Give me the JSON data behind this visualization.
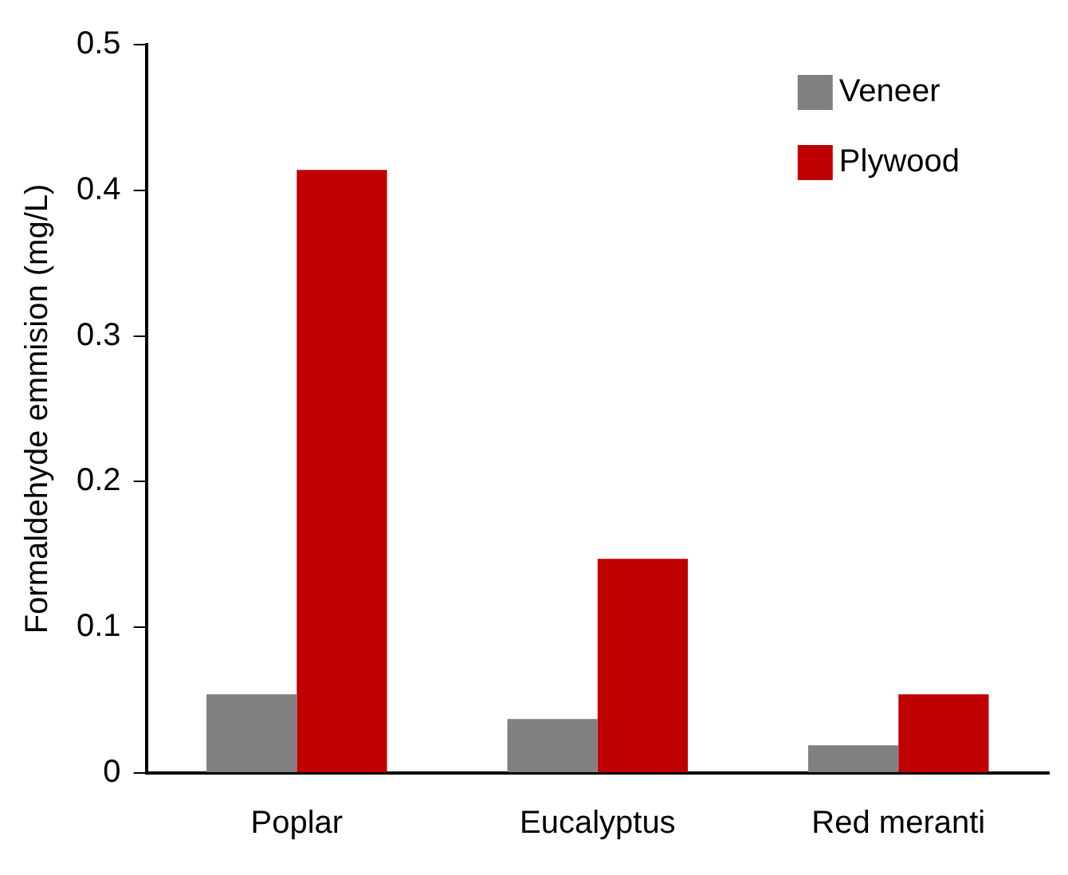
{
  "chart_data": {
    "type": "bar",
    "ylabel": "Formaldehyde emmision (mg/L)",
    "categories": [
      "Poplar",
      "Eucalyptus",
      "Red meranti"
    ],
    "series": [
      {
        "name": "Veneer",
        "color": "#808080",
        "values": [
          0.054,
          0.037,
          0.019
        ]
      },
      {
        "name": "Plywood",
        "color": "#c00000",
        "values": [
          0.414,
          0.147,
          0.054
        ]
      }
    ],
    "ylim": [
      0,
      0.5
    ],
    "yticks": [
      0,
      0.1,
      0.2,
      0.3,
      0.4,
      0.5
    ],
    "grid": false,
    "legend": "top right"
  }
}
